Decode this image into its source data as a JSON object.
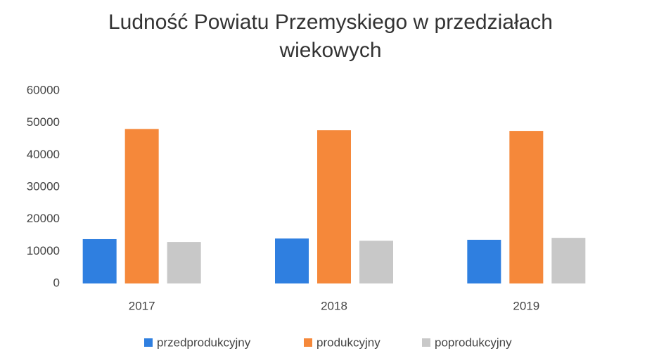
{
  "chart_data": {
    "type": "bar",
    "title": "Ludność Powiatu Przemyskiego w przedziałach wiekowych",
    "categories": [
      "2017",
      "2018",
      "2019"
    ],
    "series": [
      {
        "name": "przedprodukcyjny",
        "color": "#2f7fe0",
        "values": [
          13800,
          14000,
          13600
        ]
      },
      {
        "name": "produkcyjny",
        "color": "#f5883a",
        "values": [
          48100,
          47700,
          47500
        ]
      },
      {
        "name": "poprodukcyjny",
        "color": "#c8c8c8",
        "values": [
          12900,
          13300,
          14200
        ]
      }
    ],
    "ylim": [
      0,
      60000
    ],
    "yticks": [
      0,
      10000,
      20000,
      30000,
      40000,
      50000,
      60000
    ],
    "grid": false,
    "legend": "bottom"
  }
}
